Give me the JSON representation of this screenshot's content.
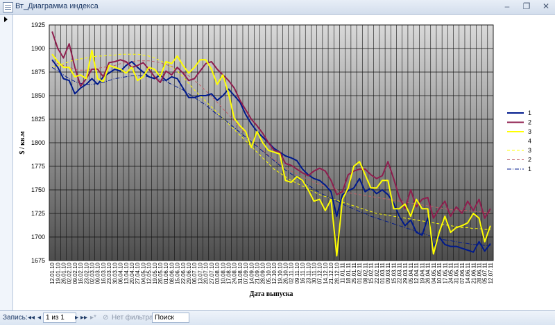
{
  "window": {
    "title": "Вт_Диаграмма индекса"
  },
  "navbar": {
    "record_label": "Запись:",
    "first": "◂◂",
    "prev": "◂",
    "position": "1 из 1",
    "next": "▸",
    "last": "▸▸",
    "new": "▸*",
    "filter": "Нет фильтра",
    "search": "Поиск"
  },
  "colors": {
    "plot_top": "#d9d9d9",
    "plot_bottom": "#4d4d4d",
    "s1": "#001a8c",
    "s2": "#8f1f4f",
    "s3": "#ffff00"
  },
  "chart_data": {
    "type": "line",
    "xlabel": "Дата выпуска",
    "ylabel": "$ / кв.м",
    "ylim": [
      1675,
      1925
    ],
    "yticks": [
      1675,
      1700,
      1725,
      1750,
      1775,
      1800,
      1825,
      1850,
      1875,
      1900,
      1925
    ],
    "grid": true,
    "legend_position": "right",
    "categories": [
      "12.01.10",
      "19.01.10",
      "26.01.10",
      "02.02.10",
      "09.02.10",
      "16.02.10",
      "23.02.10",
      "02.03.10",
      "09.03.10",
      "16.03.10",
      "23.03.10",
      "30.03.10",
      "06.04.10",
      "13.04.10",
      "20.04.10",
      "27.04.10",
      "04.05.10",
      "12.05.10",
      "19.05.10",
      "26.05.10",
      "01.06.10",
      "08.06.10",
      "15.06.10",
      "22.06.10",
      "29.06.10",
      "06.07.10",
      "13.07.10",
      "20.07.10",
      "27.07.10",
      "03.08.10",
      "10.08.10",
      "17.08.10",
      "24.08.10",
      "31.08.10",
      "07.09.10",
      "14.09.10",
      "21.09.10",
      "28.09.10",
      "05.10.10",
      "12.10.10",
      "19.10.10",
      "26.10.10",
      "02.11.10",
      "09.11.10",
      "16.11.10",
      "23.11.10",
      "30.11.10",
      "07.12.10",
      "14.12.10",
      "21.12.10",
      "28.12.10",
      "11.01.11",
      "18.01.11",
      "25.01.11",
      "01.02.11",
      "08.02.11",
      "15.02.11",
      "22.02.11",
      "01.03.11",
      "09.03.11",
      "15.03.11",
      "22.03.11",
      "29.03.11",
      "05.04.11",
      "12.04.11",
      "19.04.11",
      "26.04.11",
      "04.05.11",
      "10.05.11",
      "17.05.11",
      "24.05.11",
      "31.05.11",
      "07.06.11",
      "14.06.11",
      "21.06.11",
      "28.06.11",
      "05.07.11",
      "12.07.11"
    ],
    "series": [
      {
        "name": "1",
        "style": "solid",
        "color": "#001a8c",
        "values": [
          1888,
          1880,
          1868,
          1866,
          1852,
          1858,
          1862,
          1868,
          1862,
          1870,
          1874,
          1878,
          1876,
          1882,
          1886,
          1880,
          1875,
          1870,
          1868,
          1872,
          1866,
          1870,
          1868,
          1858,
          1848,
          1848,
          1850,
          1850,
          1852,
          1845,
          1850,
          1857,
          1850,
          1843,
          1830,
          1820,
          1812,
          1806,
          1800,
          1794,
          1790,
          1786,
          1784,
          1781,
          1772,
          1766,
          1762,
          1760,
          1755,
          1748,
          1722,
          1745,
          1749,
          1752,
          1762,
          1748,
          1752,
          1746,
          1750,
          1745,
          1736,
          1722,
          1712,
          1718,
          1705,
          1702,
          1720,
          1690,
          1700,
          1692,
          1690,
          1690,
          1688,
          1686,
          1684,
          1695,
          1685,
          1693
        ]
      },
      {
        "name": "2",
        "style": "solid",
        "color": "#8f1f4f",
        "values": [
          1918,
          1900,
          1890,
          1905,
          1880,
          1860,
          1868,
          1878,
          1878,
          1870,
          1885,
          1886,
          1888,
          1886,
          1880,
          1882,
          1885,
          1878,
          1870,
          1864,
          1876,
          1872,
          1880,
          1874,
          1866,
          1868,
          1876,
          1884,
          1886,
          1878,
          1872,
          1866,
          1858,
          1845,
          1835,
          1825,
          1818,
          1810,
          1800,
          1792,
          1790,
          1778,
          1776,
          1772,
          1768,
          1765,
          1770,
          1773,
          1770,
          1760,
          1745,
          1748,
          1766,
          1770,
          1772,
          1772,
          1766,
          1762,
          1765,
          1780,
          1762,
          1742,
          1730,
          1750,
          1732,
          1740,
          1742,
          1720,
          1730,
          1738,
          1722,
          1732,
          1725,
          1738,
          1728,
          1740,
          1720,
          1730
        ]
      },
      {
        "name": "3",
        "style": "solid",
        "color": "#ffff00",
        "values": [
          1894,
          1886,
          1880,
          1880,
          1870,
          1872,
          1868,
          1898,
          1868,
          1865,
          1882,
          1880,
          1878,
          1874,
          1880,
          1866,
          1870,
          1880,
          1878,
          1870,
          1886,
          1884,
          1892,
          1882,
          1874,
          1880,
          1888,
          1888,
          1878,
          1862,
          1872,
          1852,
          1826,
          1818,
          1812,
          1795,
          1812,
          1800,
          1792,
          1790,
          1788,
          1760,
          1758,
          1764,
          1760,
          1750,
          1738,
          1740,
          1728,
          1740,
          1680,
          1740,
          1752,
          1775,
          1780,
          1766,
          1752,
          1752,
          1760,
          1760,
          1730,
          1730,
          1735,
          1722,
          1740,
          1730,
          1730,
          1682,
          1705,
          1722,
          1705,
          1710,
          1712,
          1715,
          1725,
          1720,
          1695,
          1712
        ]
      },
      {
        "name": "3",
        "style": "dashed",
        "color": "#ffff00",
        "values": [
          1880,
          1882,
          1884,
          1886,
          1888,
          1889,
          1890,
          1891,
          1892,
          1892,
          1893,
          1893,
          1894,
          1894,
          1894,
          1894,
          1893,
          1892,
          1890,
          1887,
          1884,
          1880,
          1876,
          1870,
          1863,
          1856,
          1850,
          1844,
          1838,
          1832,
          1826,
          1820,
          1814,
          1808,
          1802,
          1796,
          1790,
          1784,
          1778,
          1772,
          1768,
          1764,
          1760,
          1757,
          1754,
          1751,
          1748,
          1745,
          1743,
          1741,
          1739,
          1737,
          1735,
          1733,
          1731,
          1729,
          1727,
          1725,
          1724,
          1723,
          1722,
          1721,
          1720,
          1719,
          1718,
          1717,
          1716,
          1715,
          1714,
          1713,
          1712,
          1711,
          1710,
          1710,
          1709,
          1709,
          1708,
          1708
        ]
      },
      {
        "name": "2",
        "style": "dashed",
        "color": "#c0606a",
        "values": [
          1886,
          1884,
          1882,
          1880,
          1878,
          1877,
          1877,
          1878,
          1879,
          1880,
          1881,
          1882,
          1884,
          1885,
          1886,
          1887,
          1887,
          1887,
          1886,
          1885,
          1883,
          1881,
          1878,
          1875,
          1871,
          1866,
          1861,
          1855,
          1849,
          1843,
          1836,
          1830,
          1823,
          1816,
          1810,
          1804,
          1798,
          1792,
          1787,
          1782,
          1778,
          1774,
          1770,
          1767,
          1764,
          1761,
          1758,
          1756,
          1754,
          1752,
          1750,
          1748,
          1747,
          1746,
          1745,
          1744,
          1743,
          1742,
          1741,
          1740,
          1739,
          1738,
          1737,
          1736,
          1735,
          1734,
          1733,
          1732,
          1731,
          1730,
          1729,
          1729,
          1728,
          1728,
          1727,
          1727,
          1726,
          1726
        ]
      },
      {
        "name": "1",
        "style": "dashdot",
        "color": "#001a8c",
        "values": [
          1880,
          1876,
          1872,
          1868,
          1865,
          1863,
          1862,
          1862,
          1863,
          1864,
          1866,
          1868,
          1869,
          1870,
          1871,
          1871,
          1871,
          1870,
          1869,
          1867,
          1865,
          1862,
          1859,
          1856,
          1852,
          1848,
          1844,
          1840,
          1835,
          1830,
          1826,
          1821,
          1816,
          1811,
          1806,
          1801,
          1796,
          1791,
          1786,
          1781,
          1776,
          1771,
          1767,
          1763,
          1759,
          1755,
          1751,
          1747,
          1744,
          1741,
          1738,
          1735,
          1732,
          1730,
          1727,
          1725,
          1722,
          1720,
          1718,
          1716,
          1714,
          1712,
          1710,
          1708,
          1706,
          1704,
          1702,
          1700,
          1698,
          1697,
          1696,
          1695,
          1694,
          1693,
          1692,
          1692,
          1691,
          1691
        ]
      }
    ]
  }
}
